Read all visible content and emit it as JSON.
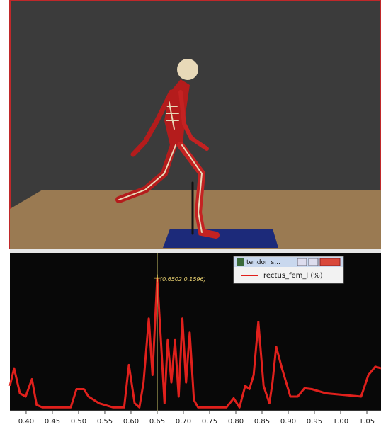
{
  "legend_window": {
    "title": "tendon s..."
  },
  "chart_data": {
    "type": "line",
    "annotation": "(0.6502 0.1596)",
    "x": [
      0.369,
      0.377,
      0.388,
      0.399,
      0.411,
      0.42,
      0.431,
      0.485,
      0.496,
      0.51,
      0.519,
      0.539,
      0.566,
      0.587,
      0.596,
      0.607,
      0.616,
      0.624,
      0.634,
      0.641,
      0.65,
      0.657,
      0.664,
      0.67,
      0.677,
      0.684,
      0.691,
      0.698,
      0.705,
      0.712,
      0.72,
      0.728,
      0.782,
      0.796,
      0.807,
      0.818,
      0.826,
      0.834,
      0.843,
      0.853,
      0.864,
      0.87,
      0.877,
      0.888,
      0.904,
      0.918,
      0.931,
      0.945,
      0.972,
      1.039,
      1.053,
      1.066,
      1.077
    ],
    "series": [
      {
        "name": "rectus_fem_l (%)",
        "color": "#e0201c",
        "values": [
          0.03,
          0.051,
          0.021,
          0.017,
          0.038,
          0.007,
          0.004,
          0.004,
          0.026,
          0.026,
          0.017,
          0.009,
          0.004,
          0.004,
          0.055,
          0.009,
          0.004,
          0.034,
          0.111,
          0.043,
          0.1596,
          0.085,
          0.009,
          0.085,
          0.034,
          0.085,
          0.017,
          0.111,
          0.034,
          0.094,
          0.013,
          0.004,
          0.004,
          0.015,
          0.004,
          0.03,
          0.026,
          0.043,
          0.107,
          0.03,
          0.009,
          0.034,
          0.077,
          0.051,
          0.017,
          0.017,
          0.027,
          0.026,
          0.021,
          0.017,
          0.043,
          0.053,
          0.051
        ]
      }
    ],
    "xlim": [
      0.369,
      1.077
    ],
    "ylim": [
      0,
      0.19
    ],
    "xticks": [
      {
        "value": 0.4,
        "label": "0.40"
      },
      0.45,
      {
        "value": 0.5,
        "label": "0.50"
      },
      0.55,
      {
        "value": 0.6,
        "label": "0.60"
      },
      0.65,
      {
        "value": 0.7,
        "label": "0.70"
      },
      0.75,
      {
        "value": 0.8,
        "label": "0.80"
      },
      0.85,
      {
        "value": 0.9,
        "label": "0.90"
      },
      0.95,
      {
        "value": 1.0,
        "label": "1.00"
      },
      1.05
    ]
  }
}
